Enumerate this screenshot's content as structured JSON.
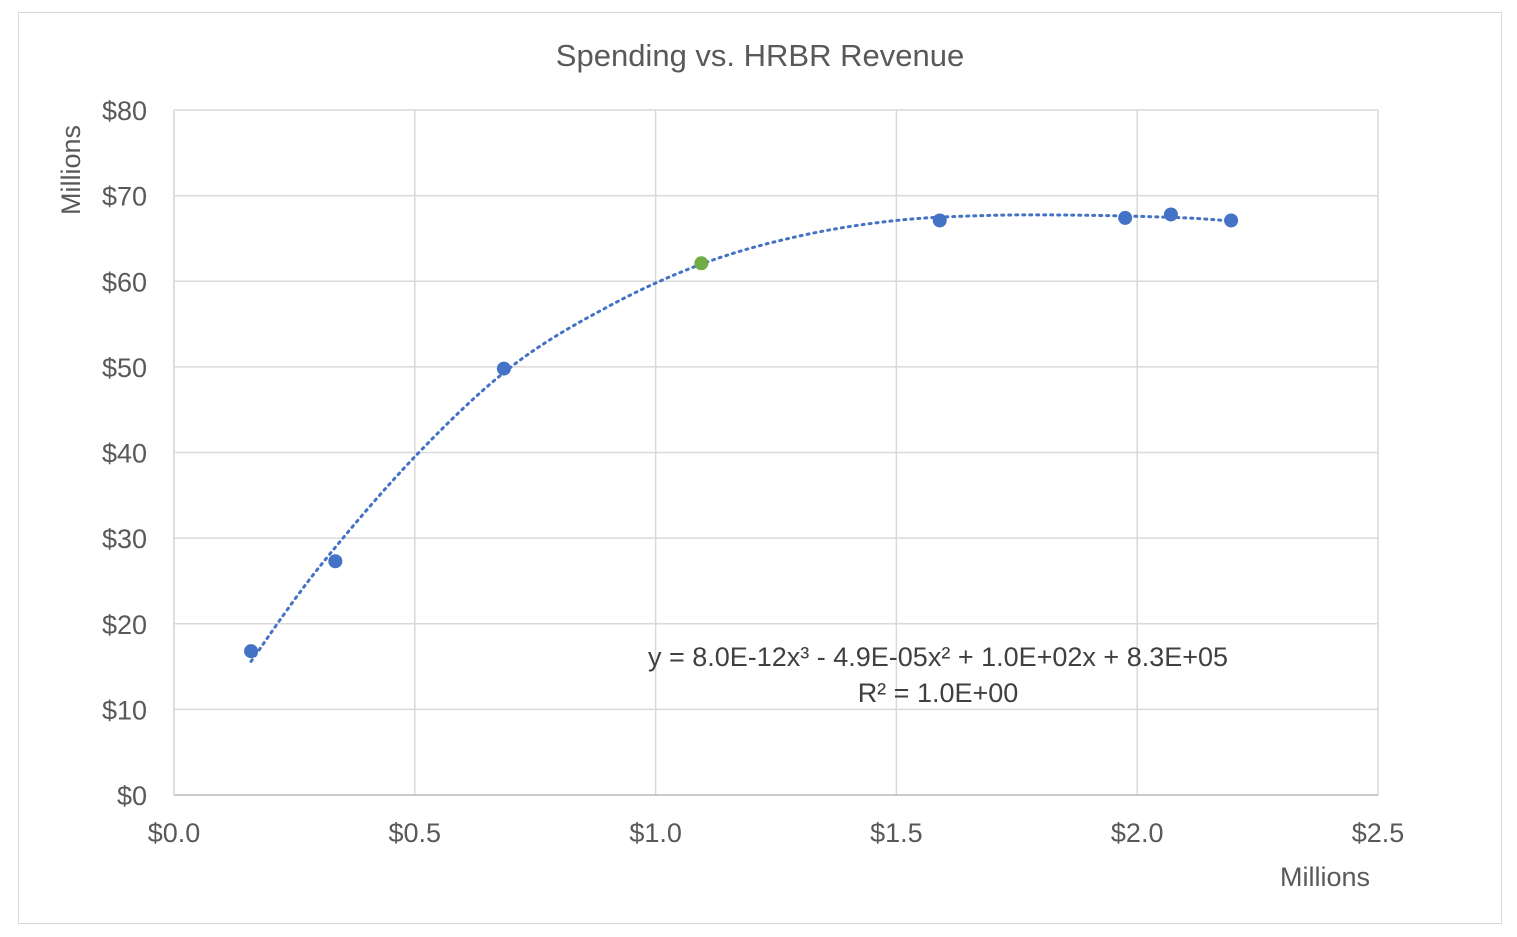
{
  "chart_data": {
    "type": "scatter",
    "title": "Spending vs. HRBR Revenue",
    "xlabel": "Millions",
    "ylabel": "Millions",
    "xlim": [
      0,
      2.5
    ],
    "ylim": [
      0,
      80
    ],
    "x_ticks": [
      "$0.0",
      "$0.5",
      "$1.0",
      "$1.5",
      "$2.0",
      "$2.5"
    ],
    "y_ticks": [
      "$0",
      "$10",
      "$20",
      "$30",
      "$40",
      "$50",
      "$60",
      "$70",
      "$80"
    ],
    "grid": true,
    "series": [
      {
        "color": "#4472c4",
        "points": [
          {
            "x": 0.16,
            "y": 16.8
          },
          {
            "x": 0.335,
            "y": 27.3
          },
          {
            "x": 0.685,
            "y": 49.8
          },
          {
            "x": 1.59,
            "y": 67.1
          },
          {
            "x": 1.975,
            "y": 67.4
          },
          {
            "x": 2.07,
            "y": 67.8
          },
          {
            "x": 2.195,
            "y": 67.1
          }
        ]
      },
      {
        "color": "#70ad47",
        "points": [
          {
            "x": 1.095,
            "y": 62.1
          }
        ]
      }
    ],
    "trendline": {
      "type": "polynomial-3",
      "style": "dotted",
      "color": "#4472c4",
      "equation": "y = 8.0E-12x³ - 4.9E-05x² + 1.0E+02x + 8.3E+05",
      "r_squared": "R² = 1.0E+00",
      "points": [
        {
          "x": 0.16,
          "y": 15.6
        },
        {
          "x": 0.3,
          "y": 26.5
        },
        {
          "x": 0.5,
          "y": 39.5
        },
        {
          "x": 0.7,
          "y": 50.0
        },
        {
          "x": 0.9,
          "y": 57.0
        },
        {
          "x": 1.1,
          "y": 62.1
        },
        {
          "x": 1.3,
          "y": 65.3
        },
        {
          "x": 1.5,
          "y": 67.1
        },
        {
          "x": 1.7,
          "y": 67.7
        },
        {
          "x": 1.9,
          "y": 67.7
        },
        {
          "x": 2.1,
          "y": 67.4
        },
        {
          "x": 2.2,
          "y": 67.0
        }
      ]
    }
  }
}
